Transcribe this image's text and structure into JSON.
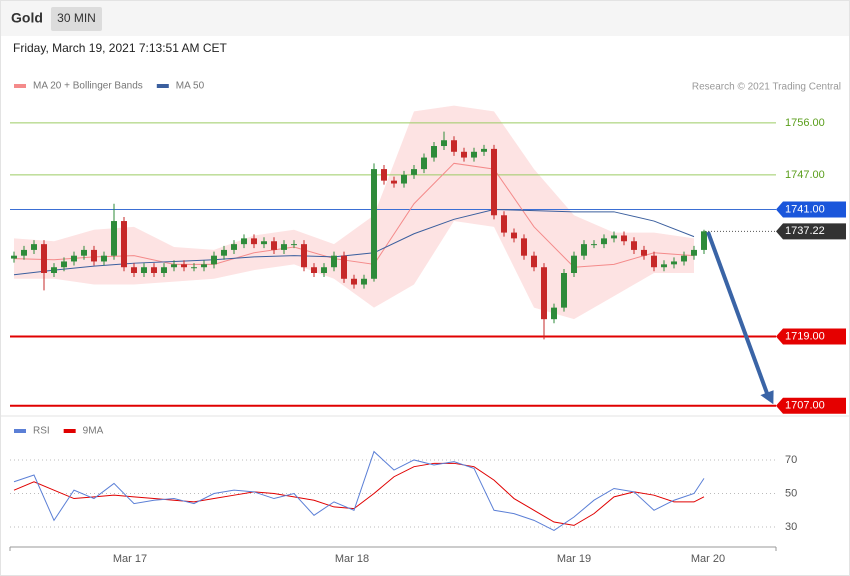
{
  "chart_data": {
    "type": "candlestick",
    "title": "Gold",
    "interval": "30 MIN",
    "subtitle": "Friday, March 19, 2021 7:13:51 AM CET",
    "legend": [
      {
        "name": "MA 20 + Bollinger Bands",
        "color": "#f48a8a"
      },
      {
        "name": "MA 50",
        "color": "#3b5f9e"
      }
    ],
    "credit": "Research © 2021 Trading Central",
    "xlim": [
      -0.4,
      76.2
    ],
    "xticks": [
      {
        "value": 11.6,
        "label": "Mar 17"
      },
      {
        "value": 33.8,
        "label": "Mar 18"
      },
      {
        "value": 56,
        "label": "Mar 19"
      },
      {
        "value": 69.4,
        "label": "Mar 20"
      }
    ],
    "ylim": [
      1705.4,
      1766.9
    ],
    "candles": {
      "open": [
        1732.5,
        1733,
        1734,
        1735,
        1730,
        1731,
        1732,
        1733,
        1734,
        1732,
        1733,
        1739,
        1731,
        1730,
        1731,
        1730,
        1731,
        1731.5,
        1731,
        1731,
        1731.5,
        1733,
        1734,
        1735,
        1736,
        1735,
        1735.5,
        1734,
        1735,
        1735,
        1731,
        1730,
        1731,
        1733,
        1729,
        1728,
        1729,
        1748,
        1746,
        1745.5,
        1747,
        1748,
        1750,
        1752,
        1753,
        1751,
        1750,
        1751,
        1751.5,
        1740,
        1737,
        1736,
        1733,
        1731,
        1722,
        1724,
        1730,
        1733,
        1735,
        1735,
        1736,
        1736.5,
        1735.5,
        1734,
        1733,
        1731,
        1731.5,
        1732,
        1733,
        1734
      ],
      "high": [
        1733.7,
        1734.7,
        1735.7,
        1735.7,
        1731.7,
        1732.7,
        1733.7,
        1734.7,
        1734.7,
        1733.7,
        1742,
        1739.7,
        1731.7,
        1731.7,
        1731.7,
        1731.7,
        1732.2,
        1732.2,
        1731.7,
        1732.2,
        1733.7,
        1734.7,
        1735.7,
        1736.7,
        1736.7,
        1736.2,
        1736.2,
        1735.7,
        1735.7,
        1735.7,
        1731.7,
        1731.7,
        1733.7,
        1733.7,
        1729.7,
        1729.7,
        1749,
        1748.7,
        1746.7,
        1747.7,
        1748.7,
        1750.7,
        1752.7,
        1754.5,
        1753.7,
        1751.7,
        1751.7,
        1752.2,
        1752.2,
        1740.7,
        1737.7,
        1736.7,
        1733.7,
        1731.7,
        1724.7,
        1730.7,
        1733.7,
        1735.7,
        1735.7,
        1736.7,
        1737.2,
        1737.2,
        1736.2,
        1734.7,
        1733.7,
        1732.2,
        1732.7,
        1733.7,
        1734.7,
        1737.5
      ],
      "low": [
        1731.8,
        1732.3,
        1733.3,
        1727,
        1729.3,
        1730.3,
        1731.3,
        1732.3,
        1731.3,
        1731.3,
        1732.3,
        1730.3,
        1729.3,
        1729.3,
        1729.3,
        1729.3,
        1730.3,
        1730.3,
        1730.3,
        1730.3,
        1730.8,
        1732.3,
        1733.3,
        1734.3,
        1734.3,
        1734.3,
        1733.3,
        1733.3,
        1734.3,
        1730.3,
        1729.3,
        1729.3,
        1730.3,
        1728.3,
        1727.3,
        1727.3,
        1728.5,
        1745.3,
        1744.8,
        1744.8,
        1746.3,
        1747.3,
        1749.3,
        1751.3,
        1750.3,
        1749.3,
        1749.3,
        1750.3,
        1739.3,
        1736.3,
        1735.3,
        1732.3,
        1730.3,
        1718.5,
        1721.3,
        1723.3,
        1729.3,
        1732.3,
        1734.3,
        1734.3,
        1735.3,
        1734.8,
        1733.3,
        1732.3,
        1730.3,
        1730.3,
        1730.8,
        1731.3,
        1732.3,
        1733.3
      ],
      "close": [
        1733,
        1734,
        1735,
        1730,
        1731,
        1732,
        1733,
        1734,
        1732,
        1733,
        1739,
        1731,
        1730,
        1731,
        1730,
        1731,
        1731.5,
        1731,
        1731,
        1731.5,
        1733,
        1734,
        1735,
        1736,
        1735,
        1735.5,
        1734,
        1735,
        1735,
        1731,
        1730,
        1731,
        1733,
        1729,
        1728,
        1729,
        1748,
        1746,
        1745.5,
        1747,
        1748,
        1750,
        1752,
        1753,
        1751,
        1750,
        1751,
        1751.5,
        1740,
        1737,
        1736,
        1733,
        1731,
        1722,
        1724,
        1730,
        1733,
        1735,
        1735,
        1736,
        1736.5,
        1735.5,
        1734,
        1733,
        1731,
        1731.5,
        1732,
        1733,
        1734,
        1737.22
      ],
      "up_color": "#2e8b3a",
      "down_color": "#c62828"
    },
    "overlays": {
      "x": [
        0,
        4,
        8,
        12,
        16,
        20,
        24,
        28,
        32,
        36,
        40,
        44,
        48,
        52,
        56,
        60,
        64,
        68
      ],
      "ma20": [
        1732.5,
        1732.3,
        1732.8,
        1733,
        1731.5,
        1731.5,
        1733.5,
        1734.5,
        1732.5,
        1731.5,
        1742,
        1749,
        1748,
        1738,
        1731,
        1731.5,
        1733.5,
        1733
      ],
      "ma50": [
        1729.7,
        1730.5,
        1731.2,
        1731.7,
        1732,
        1732.3,
        1732.8,
        1733,
        1732.8,
        1733.5,
        1736.8,
        1739.3,
        1741,
        1740.8,
        1740.6,
        1740.6,
        1739,
        1736.3
      ],
      "bb_upper": [
        1736,
        1735.5,
        1737.5,
        1738,
        1734.5,
        1734,
        1736.5,
        1737.5,
        1735,
        1740,
        1758,
        1759,
        1758,
        1748,
        1740,
        1737,
        1737,
        1736
      ],
      "bb_lower": [
        1729,
        1729,
        1728,
        1728,
        1728.5,
        1729,
        1730.5,
        1731.5,
        1729,
        1724,
        1728,
        1739,
        1738,
        1724,
        1722,
        1726,
        1730,
        1730
      ],
      "band_color": "#fde3e3"
    },
    "levels": [
      {
        "value": 1756,
        "label": "1756.00",
        "color": "#9ccc65",
        "text_color": "#5a9e1b"
      },
      {
        "value": 1747,
        "label": "1747.00",
        "color": "#9ccc65",
        "text_color": "#5a9e1b"
      },
      {
        "value": 1741,
        "label": "1741.00",
        "color": "#3b6fd4",
        "tag": "#1a56db"
      },
      {
        "value": 1737.22,
        "label": "1737.22",
        "color": "#555",
        "tag": "#333333",
        "dotted": true
      },
      {
        "value": 1719,
        "label": "1719.00",
        "color": "#e00000",
        "tag": "#e50000"
      },
      {
        "value": 1707,
        "label": "1707.00",
        "color": "#e00000",
        "tag": "#e50000"
      }
    ],
    "rsi": {
      "legend": [
        {
          "name": "RSI",
          "color": "#5b7fd6"
        },
        {
          "name": "9MA",
          "color": "#e00000"
        }
      ],
      "ylim": [
        19.3,
        81.9
      ],
      "yticks": [
        70,
        50,
        30
      ],
      "x": [
        0,
        2,
        4,
        6,
        8,
        10,
        12,
        14,
        16,
        18,
        20,
        22,
        24,
        26,
        28,
        30,
        32,
        34,
        36,
        38,
        40,
        42,
        44,
        46,
        48,
        50,
        52,
        54,
        56,
        58,
        60,
        62,
        64,
        66,
        68,
        69
      ],
      "rsi": [
        57,
        61,
        34,
        52,
        47,
        56,
        44,
        46,
        47,
        44,
        50,
        52,
        51,
        47,
        50,
        37,
        45,
        40,
        75,
        64,
        70,
        67,
        69,
        65,
        40,
        38,
        34,
        28,
        36,
        46,
        53,
        51,
        40,
        46,
        50,
        59
      ],
      "ma9": [
        52,
        57,
        52,
        47,
        48,
        49,
        48,
        47,
        46,
        45,
        47,
        49,
        51,
        50,
        48,
        46,
        42,
        41,
        50,
        60,
        66,
        68,
        68,
        66,
        58,
        47,
        40,
        33,
        31,
        38,
        48,
        51,
        49,
        45,
        45,
        48
      ]
    }
  }
}
